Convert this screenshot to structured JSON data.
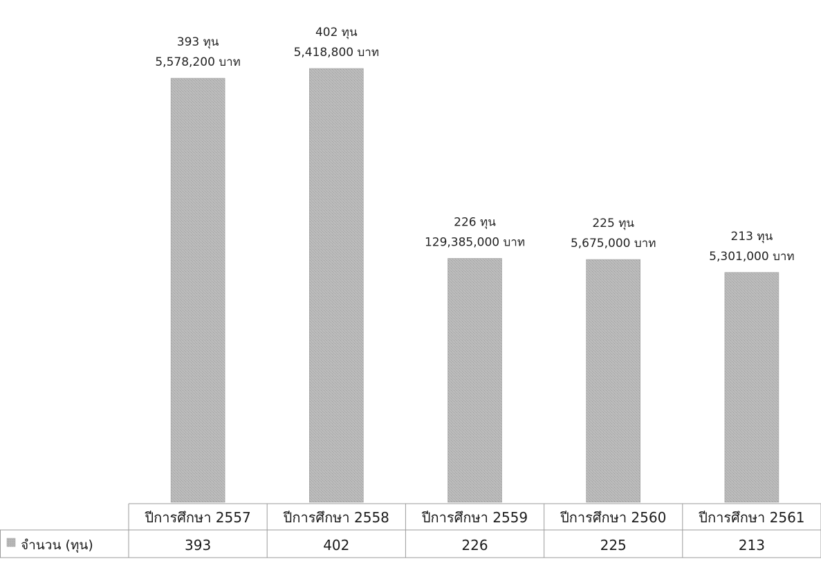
{
  "chart_data": {
    "type": "bar",
    "categories": [
      "ปีการศึกษา 2557",
      "ปีการศึกษา 2558",
      "ปีการศึกษา 2559",
      "ปีการศึกษา 2560",
      "ปีการศึกษา 2561"
    ],
    "series": [
      {
        "name": "จำนวน (ทุน)",
        "values": [
          393,
          402,
          226,
          225,
          213
        ]
      }
    ],
    "data_labels": [
      [
        "393 ทุน",
        "5,578,200 บาท"
      ],
      [
        "402 ทุน",
        "5,418,800 บาท"
      ],
      [
        "226 ทุน",
        "129,385,000 บาท"
      ],
      [
        "225 ทุน",
        "5,675,000 บาท"
      ],
      [
        "213 ทุน",
        "5,301,000 บาท"
      ]
    ],
    "table": {
      "row_label": "จำนวน (ทุน)",
      "values": [
        "393",
        "402",
        "226",
        "225",
        "213"
      ]
    },
    "ylim": [
      0,
      402
    ],
    "grid": false,
    "legend": "data-table-left",
    "bar_color": "#b3b3b3",
    "bar_edge_color": "#9e9e9e",
    "table_border_color": "#9a9a9a"
  }
}
